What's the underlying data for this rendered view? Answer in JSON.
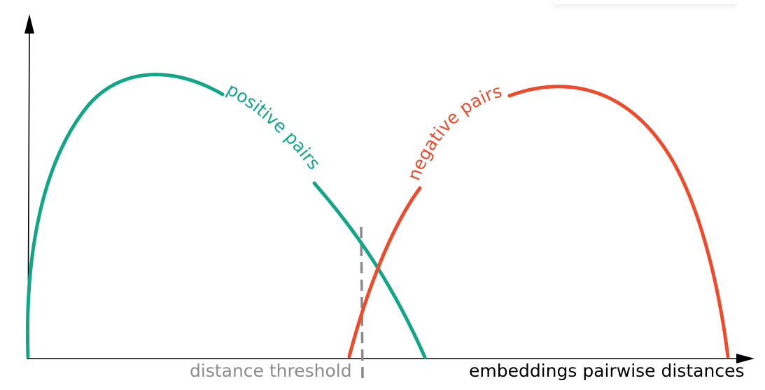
{
  "labels": {
    "positive_curve": "positive pairs",
    "negative_curve": "negative pairs",
    "threshold": "distance threshold",
    "x_axis": "embeddings pairwise distances"
  },
  "colors": {
    "positive": "#12a689",
    "negative": "#ee4b2b",
    "threshold": "#8a8a8a",
    "threshold_label": "#8c8c8c",
    "axis": "#000000"
  }
}
